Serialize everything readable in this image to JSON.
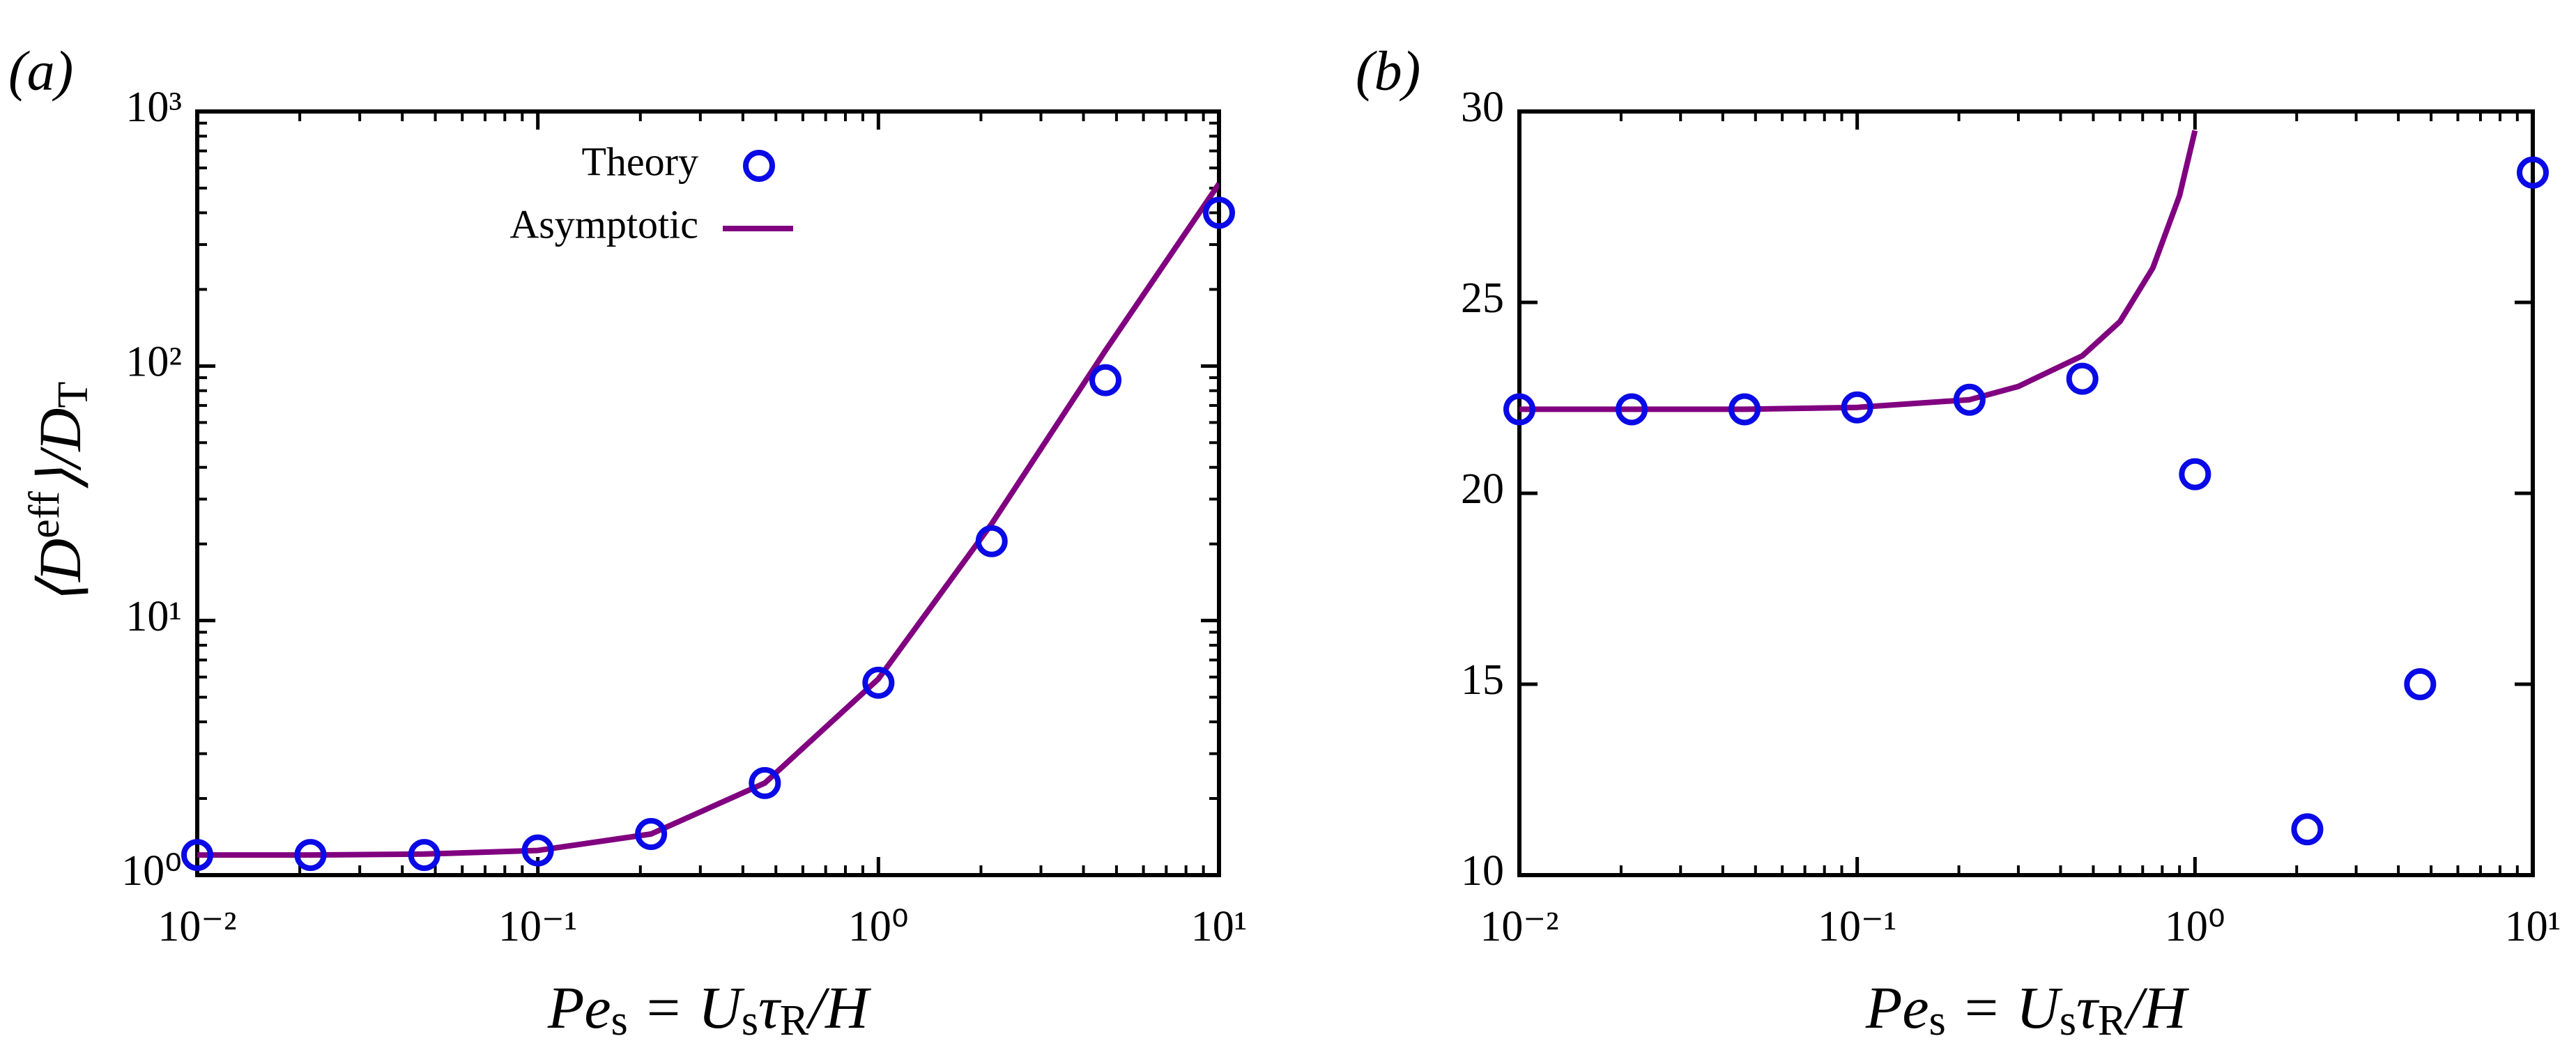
{
  "chart_data": [
    {
      "type": "scatter",
      "panel": "(a)",
      "xlabel": [
        "Pe",
        "s",
        " = U",
        "s",
        "τ",
        "R",
        "/H"
      ],
      "ylabel": [
        "⟨D",
        "eff",
        "⟩/D",
        "T"
      ],
      "xlog": true,
      "ylog": true,
      "xlim": [
        0.01,
        10
      ],
      "ylim": [
        1,
        1000
      ],
      "xticks": [
        {
          "value": 0.01,
          "label": "10⁻²"
        },
        {
          "value": 0.1,
          "label": "10⁻¹"
        },
        {
          "value": 1,
          "label": "10⁰"
        },
        {
          "value": 10,
          "label": "10¹"
        }
      ],
      "yticks": [
        {
          "value": 1,
          "label": "10⁰"
        },
        {
          "value": 10,
          "label": "10¹"
        },
        {
          "value": 100,
          "label": "10²"
        },
        {
          "value": 1000,
          "label": "10³"
        }
      ],
      "legend": "upper left",
      "series": [
        {
          "name": "Theory",
          "style": "marker",
          "color": "#0a0ae6",
          "x": [
            0.01,
            0.0215,
            0.0464,
            0.1,
            0.215,
            0.464,
            1,
            2.15,
            4.64,
            10
          ],
          "values": [
            1.2,
            1.2,
            1.2,
            1.25,
            1.45,
            2.3,
            5.7,
            20.5,
            88,
            400
          ]
        },
        {
          "name": "Asymptotic",
          "style": "line",
          "color": "#800080",
          "x": [
            0.01,
            0.0215,
            0.0464,
            0.1,
            0.215,
            0.464,
            1,
            2.15,
            4.64,
            10
          ],
          "values": [
            1.2,
            1.2,
            1.21,
            1.25,
            1.45,
            2.3,
            5.9,
            24,
            115,
            520
          ]
        }
      ]
    },
    {
      "type": "scatter",
      "panel": "(b)",
      "xlabel": [
        "Pe",
        "s",
        " = U",
        "s",
        "τ",
        "R",
        "/H"
      ],
      "xlog": true,
      "ylog": false,
      "xlim": [
        0.01,
        10
      ],
      "ylim": [
        10,
        30
      ],
      "xticks": [
        {
          "value": 0.01,
          "label": "10⁻²"
        },
        {
          "value": 0.1,
          "label": "10⁻¹"
        },
        {
          "value": 1,
          "label": "10⁰"
        },
        {
          "value": 10,
          "label": "10¹"
        }
      ],
      "yticks": [
        10,
        15,
        20,
        25,
        30
      ],
      "series": [
        {
          "name": "Theory",
          "style": "marker",
          "color": "#0a0ae6",
          "x": [
            0.01,
            0.0215,
            0.0464,
            0.1,
            0.215,
            0.464,
            1,
            2.15,
            4.64,
            10
          ],
          "values": [
            22.2,
            22.2,
            22.2,
            22.25,
            22.45,
            23.0,
            20.5,
            11.2,
            15.0,
            28.4
          ]
        },
        {
          "name": "Asymptotic",
          "style": "line",
          "color": "#800080",
          "x": [
            0.01,
            0.0215,
            0.0464,
            0.1,
            0.215,
            0.3,
            0.464,
            0.6,
            0.75,
            0.9,
            1
          ],
          "values": [
            22.2,
            22.2,
            22.2,
            22.25,
            22.45,
            22.8,
            23.6,
            24.5,
            25.9,
            27.8,
            29.5
          ]
        }
      ]
    }
  ]
}
